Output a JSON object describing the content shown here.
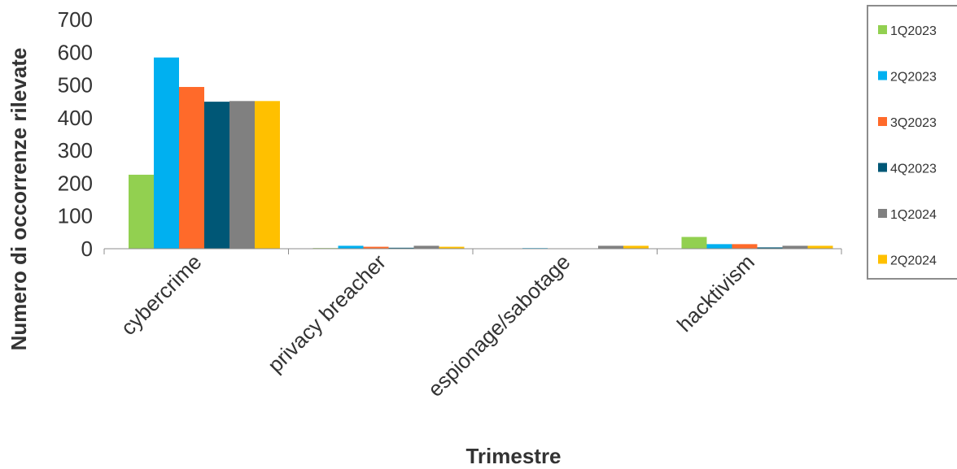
{
  "chart_data": {
    "type": "bar",
    "xlabel": "Trimestre",
    "ylabel": "Numero di occorrenze rilevate",
    "ylim": [
      0,
      700
    ],
    "yticks": [
      0,
      100,
      200,
      300,
      400,
      500,
      600,
      700
    ],
    "categories": [
      "cybercrime",
      "privacy breacher",
      "espionage/sabotage",
      "hacktivism"
    ],
    "series": [
      {
        "name": "1Q2023",
        "color": "#92D050",
        "values": [
          226,
          2,
          0,
          36
        ]
      },
      {
        "name": "2Q2023",
        "color": "#00B0F0",
        "values": [
          584,
          9,
          2,
          14
        ]
      },
      {
        "name": "3Q2023",
        "color": "#FF6A2A",
        "values": [
          494,
          6,
          0,
          14
        ]
      },
      {
        "name": "4Q2023",
        "color": "#005776",
        "values": [
          449,
          3,
          0,
          4
        ]
      },
      {
        "name": "1Q2024",
        "color": "#808080",
        "values": [
          451,
          9,
          9,
          9
        ]
      },
      {
        "name": "2Q2024",
        "color": "#FFC000",
        "values": [
          451,
          6,
          9,
          9
        ]
      }
    ],
    "legend_position": "right",
    "grid": false
  }
}
